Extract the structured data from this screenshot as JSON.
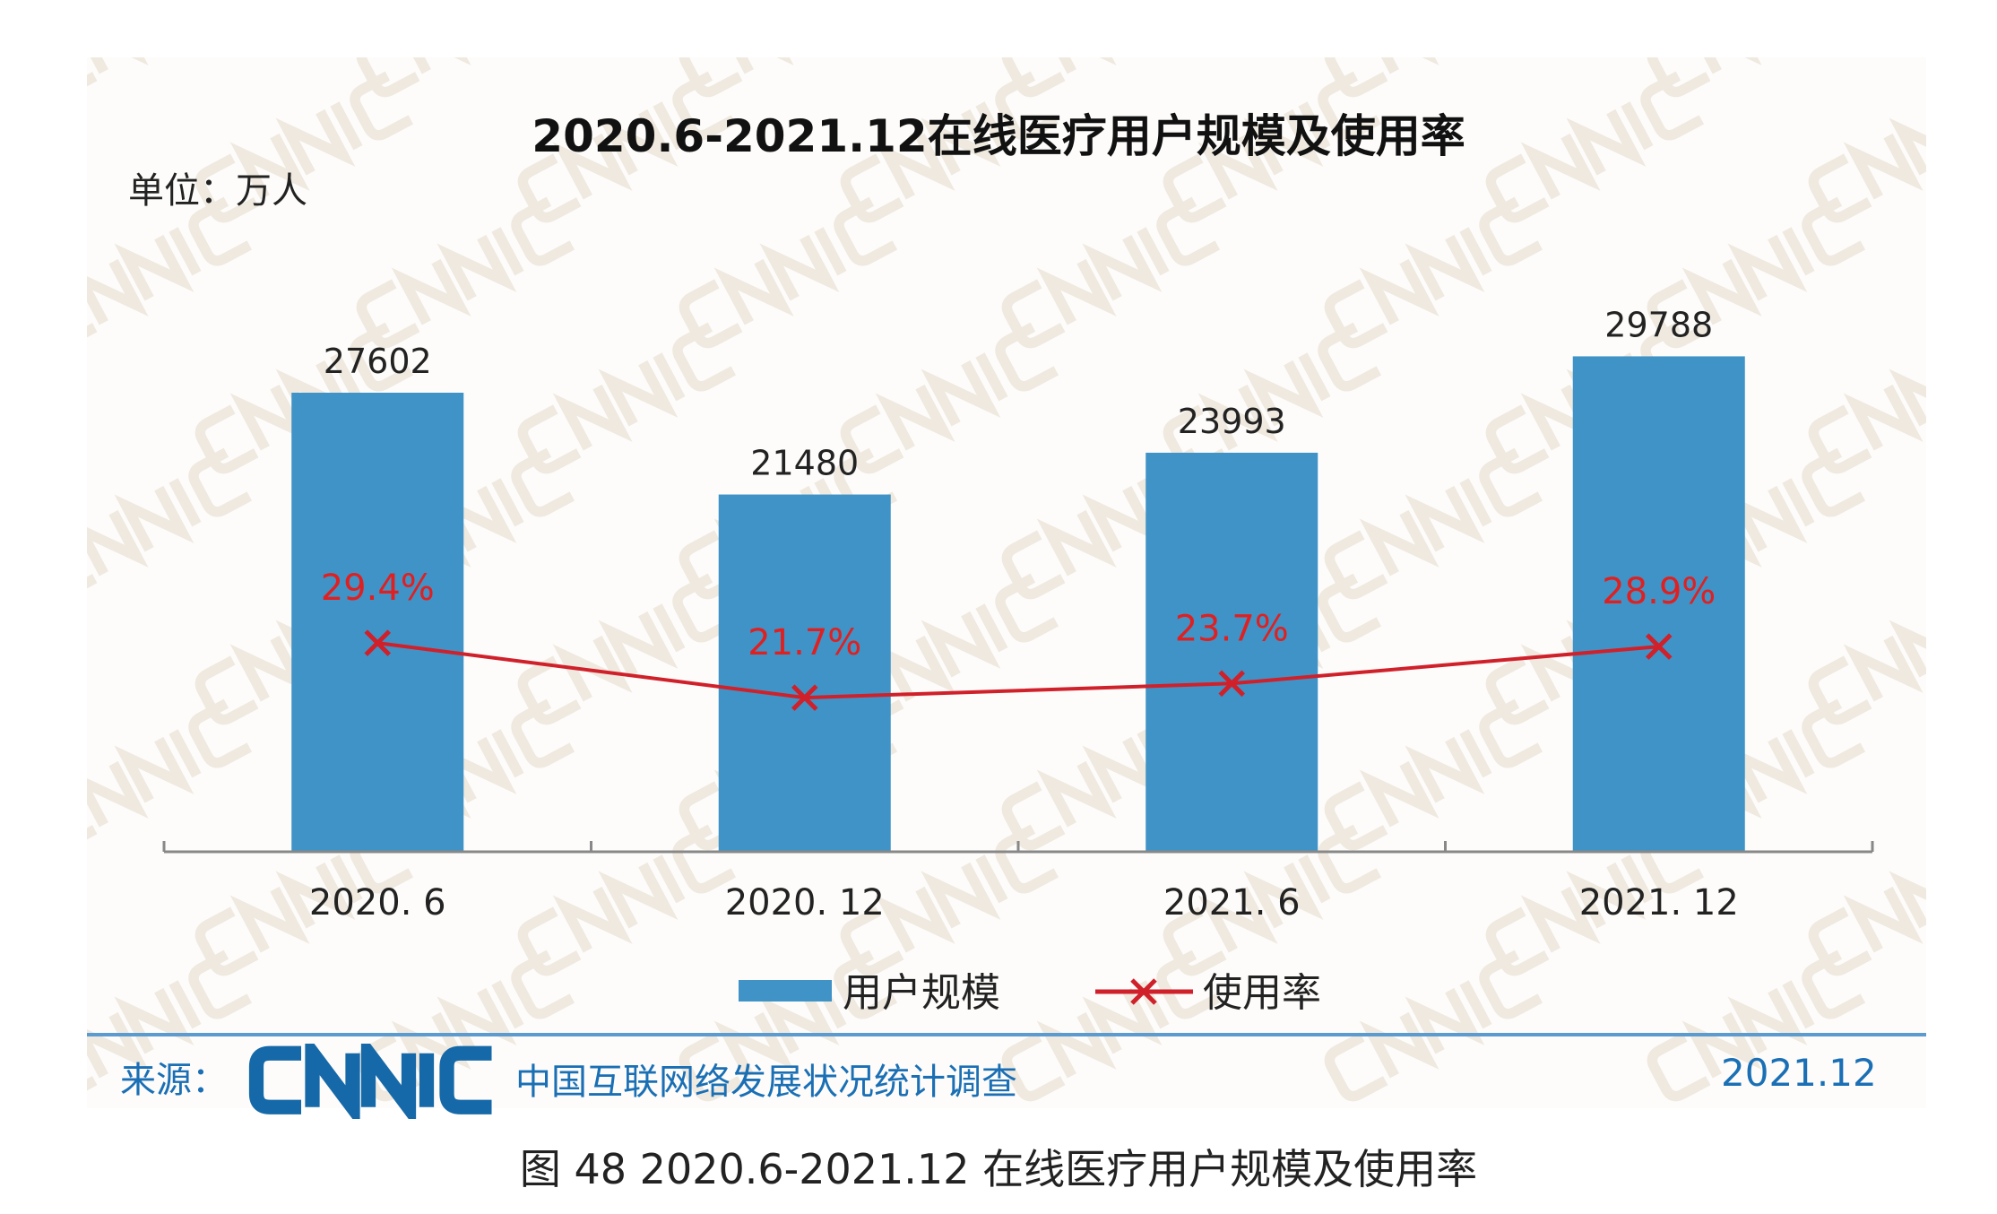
{
  "chart_data": {
    "type": "bar",
    "title": "2020.6-2021.12在线医疗用户规模及使用率",
    "unit_label": "单位：万人",
    "categories": [
      "2020. 6",
      "2020. 12",
      "2021. 6",
      "2021. 12"
    ],
    "series": [
      {
        "name": "用户规模",
        "type": "bar",
        "axis": "left",
        "values": [
          27602,
          21480,
          23993,
          29788
        ],
        "labels": [
          "27602",
          "21480",
          "23993",
          "29788"
        ],
        "color": "#3f93c7"
      },
      {
        "name": "使用率",
        "type": "line",
        "axis": "right",
        "marker": "x",
        "values": [
          29.4,
          21.7,
          23.7,
          28.9
        ],
        "labels": [
          "29.4%",
          "21.7%",
          "23.7%",
          "28.9%"
        ],
        "color": "#d0202a"
      }
    ],
    "ylim": [
      0,
      40000
    ],
    "y2lim": [
      0,
      100
    ],
    "grid": false,
    "legend": "bottom-center",
    "watermark": "CNNIC"
  },
  "footer": {
    "source_label": "来源：",
    "logo_text": "CNNIC",
    "source_name": "中国互联网络发展状况统计调查",
    "date": "2021.12",
    "accent": "#1a6fb5"
  },
  "caption": "图 48  2020.6-2021.12 在线医疗用户规模及使用率"
}
